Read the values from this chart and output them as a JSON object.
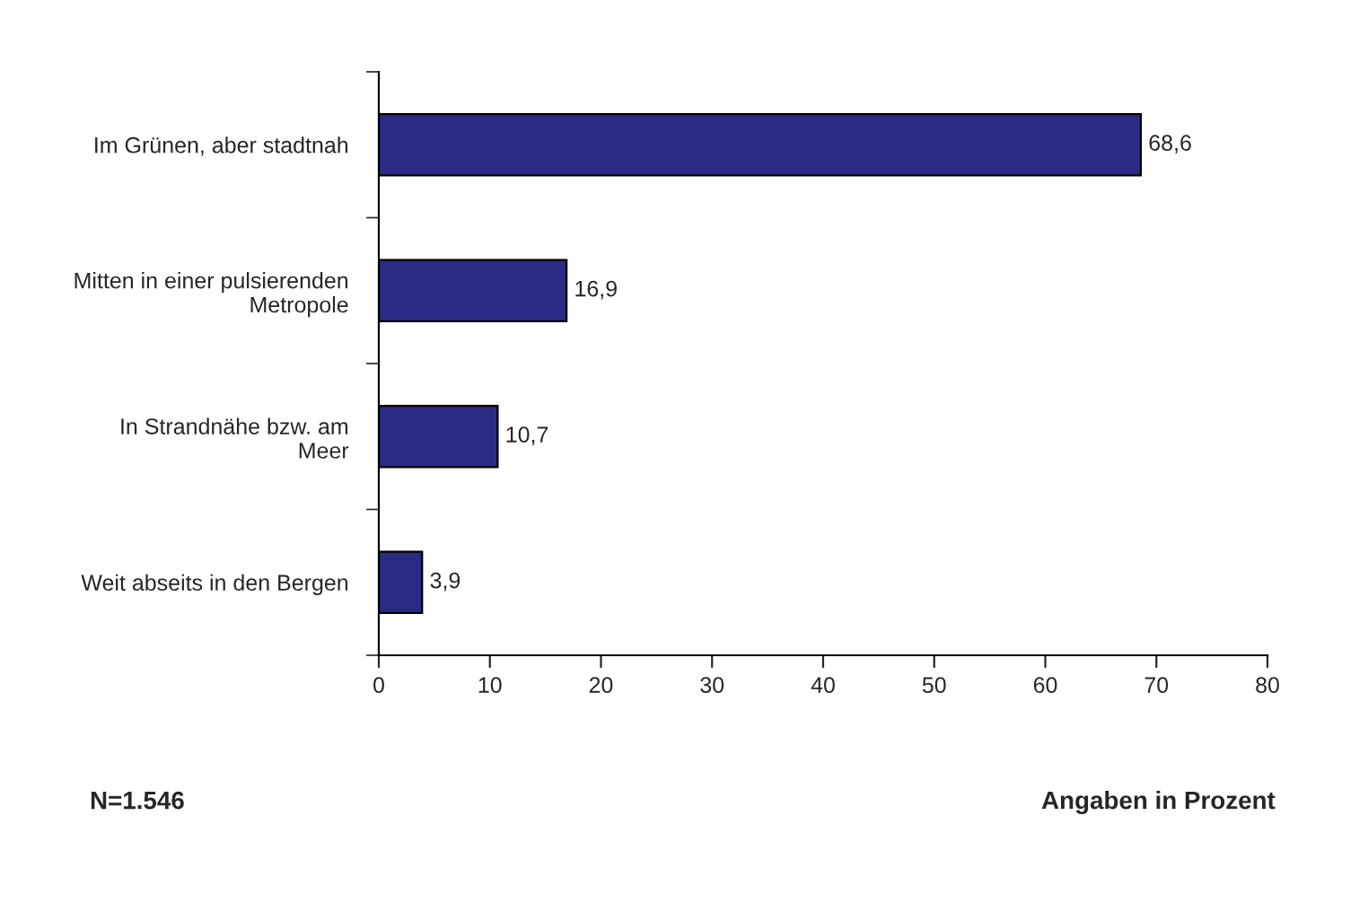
{
  "chart_data": {
    "type": "bar",
    "orientation": "horizontal",
    "categories": [
      "Im Grünen, aber stadtnah",
      "Mitten in einer pulsierenden\nMetropole",
      "In Strandnähe bzw. am\nMeer",
      "Weit abseits in den Bergen"
    ],
    "values": [
      68.6,
      16.9,
      10.7,
      3.9
    ],
    "value_labels": [
      "68,6",
      "16,9",
      "10,7",
      "3,9"
    ],
    "color": "#2b2b86",
    "xlim": [
      0,
      80
    ],
    "xticks": [
      0,
      10,
      20,
      30,
      40,
      50,
      60,
      70,
      80
    ],
    "grid": false,
    "annotations": [
      "N=1.546",
      "Angaben in Prozent"
    ]
  }
}
